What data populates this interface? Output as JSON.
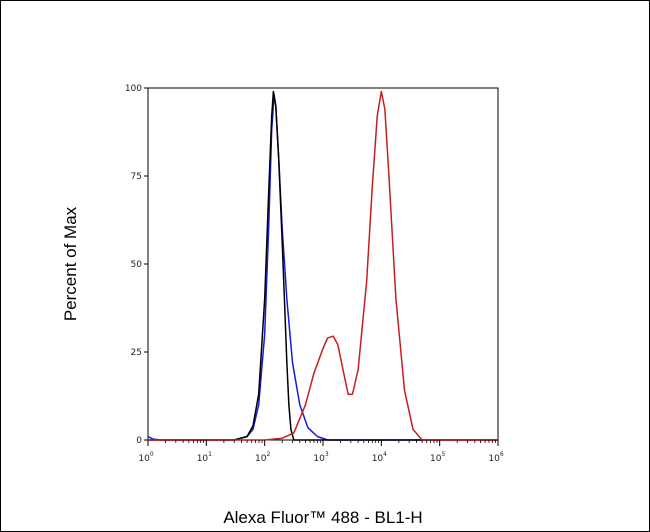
{
  "chart_data": {
    "type": "line",
    "title": "",
    "xlabel": "Alexa Fluor™ 488 - BL1-H",
    "ylabel": "Percent of Max",
    "x_scale": "log",
    "xlim": [
      1,
      1000000
    ],
    "ylim": [
      0,
      100
    ],
    "y_ticks": [
      0,
      25,
      50,
      75,
      100
    ],
    "x_ticks": [
      {
        "base": "10",
        "exp": "0"
      },
      {
        "base": "10",
        "exp": "1"
      },
      {
        "base": "10",
        "exp": "2"
      },
      {
        "base": "10",
        "exp": "3"
      },
      {
        "base": "10",
        "exp": "4"
      },
      {
        "base": "10",
        "exp": "5"
      },
      {
        "base": "10",
        "exp": "6"
      }
    ],
    "grid": false,
    "legend": "none",
    "series": [
      {
        "color": "#1a1adc",
        "points": [
          [
            1,
            1
          ],
          [
            1.2,
            0.3
          ],
          [
            1.6,
            0
          ],
          [
            10,
            0
          ],
          [
            30,
            0
          ],
          [
            50,
            1
          ],
          [
            63,
            3
          ],
          [
            79,
            10
          ],
          [
            100,
            30
          ],
          [
            117,
            60
          ],
          [
            132,
            88
          ],
          [
            145,
            98
          ],
          [
            155,
            95
          ],
          [
            174,
            80
          ],
          [
            200,
            60
          ],
          [
            240,
            40
          ],
          [
            300,
            22
          ],
          [
            400,
            10
          ],
          [
            550,
            3.5
          ],
          [
            800,
            1
          ],
          [
            1200,
            0
          ],
          [
            1000000,
            0
          ]
        ]
      },
      {
        "color": "#000000",
        "points": [
          [
            1,
            0
          ],
          [
            30,
            0
          ],
          [
            50,
            1
          ],
          [
            63,
            4
          ],
          [
            79,
            13
          ],
          [
            100,
            40
          ],
          [
            117,
            70
          ],
          [
            132,
            92
          ],
          [
            141,
            99
          ],
          [
            155,
            95
          ],
          [
            174,
            80
          ],
          [
            200,
            56
          ],
          [
            224,
            35
          ],
          [
            240,
            22
          ],
          [
            260,
            10
          ],
          [
            282,
            3
          ],
          [
            316,
            0
          ],
          [
            1000000,
            0
          ]
        ]
      },
      {
        "color": "#c81e1e",
        "points": [
          [
            1,
            0
          ],
          [
            100,
            0
          ],
          [
            200,
            0.5
          ],
          [
            316,
            2
          ],
          [
            500,
            10
          ],
          [
            700,
            19
          ],
          [
            1000,
            26
          ],
          [
            1200,
            29
          ],
          [
            1500,
            29.5
          ],
          [
            1800,
            27
          ],
          [
            2200,
            20
          ],
          [
            2700,
            13
          ],
          [
            3200,
            13
          ],
          [
            4000,
            20
          ],
          [
            5600,
            45
          ],
          [
            7000,
            72
          ],
          [
            8500,
            92
          ],
          [
            10000,
            99
          ],
          [
            11500,
            94
          ],
          [
            13500,
            75
          ],
          [
            17800,
            40
          ],
          [
            25000,
            14
          ],
          [
            35000,
            3
          ],
          [
            50000,
            0
          ],
          [
            1000000,
            0
          ]
        ]
      }
    ]
  }
}
